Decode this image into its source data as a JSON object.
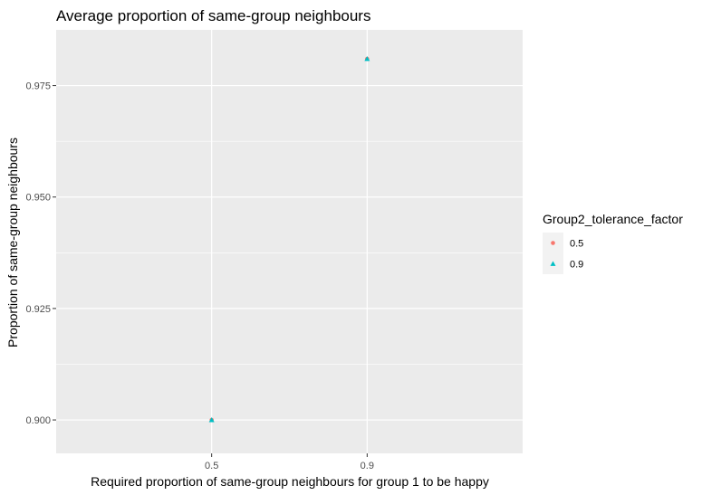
{
  "chart_data": {
    "type": "scatter",
    "title": "Average proportion of same-group neighbours",
    "xlabel": "Required proportion of same-group neighbours for group 1 to be happy",
    "ylabel": "Proportion of same-group neighbours",
    "x_categories": [
      "0.5",
      "0.9"
    ],
    "y_ticks": [
      0.9,
      0.925,
      0.95,
      0.975
    ],
    "y_tick_labels": [
      "0.900",
      "0.925",
      "0.950",
      "0.975"
    ],
    "ylim": [
      0.8925,
      0.9875
    ],
    "grid": true,
    "legend": {
      "title": "Group2_tolerance_factor",
      "placement": "right",
      "entries": [
        {
          "label": "0.5",
          "shape": "circle",
          "color": "#F8766D"
        },
        {
          "label": "0.9",
          "shape": "triangle",
          "color": "#00BFC4"
        }
      ]
    },
    "series": [
      {
        "name": "0.5",
        "shape": "circle",
        "color": "#F8766D",
        "points": [
          {
            "x": "0.5",
            "y": 0.9
          },
          {
            "x": "0.9",
            "y": 0.981
          }
        ]
      },
      {
        "name": "0.9",
        "shape": "triangle",
        "color": "#00BFC4",
        "points": [
          {
            "x": "0.5",
            "y": 0.9
          },
          {
            "x": "0.9",
            "y": 0.981
          }
        ]
      }
    ]
  }
}
